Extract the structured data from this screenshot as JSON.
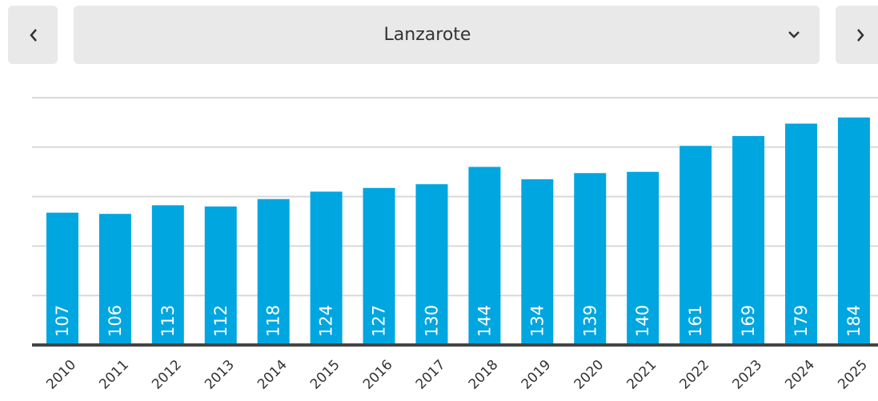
{
  "selector": {
    "label": "Lanzarote"
  },
  "chart_data": {
    "type": "bar",
    "categories": [
      "2010",
      "2011",
      "2012",
      "2013",
      "2014",
      "2015",
      "2016",
      "2017",
      "2018",
      "2019",
      "2020",
      "2021",
      "2022",
      "2023",
      "2024",
      "2025"
    ],
    "values": [
      107,
      106,
      113,
      112,
      118,
      124,
      127,
      130,
      144,
      134,
      139,
      140,
      161,
      169,
      179,
      184
    ],
    "color": "#00a6e0",
    "ylim": [
      0,
      200
    ],
    "yticks": [
      0,
      40,
      80,
      120,
      160,
      200
    ],
    "grid": true
  }
}
